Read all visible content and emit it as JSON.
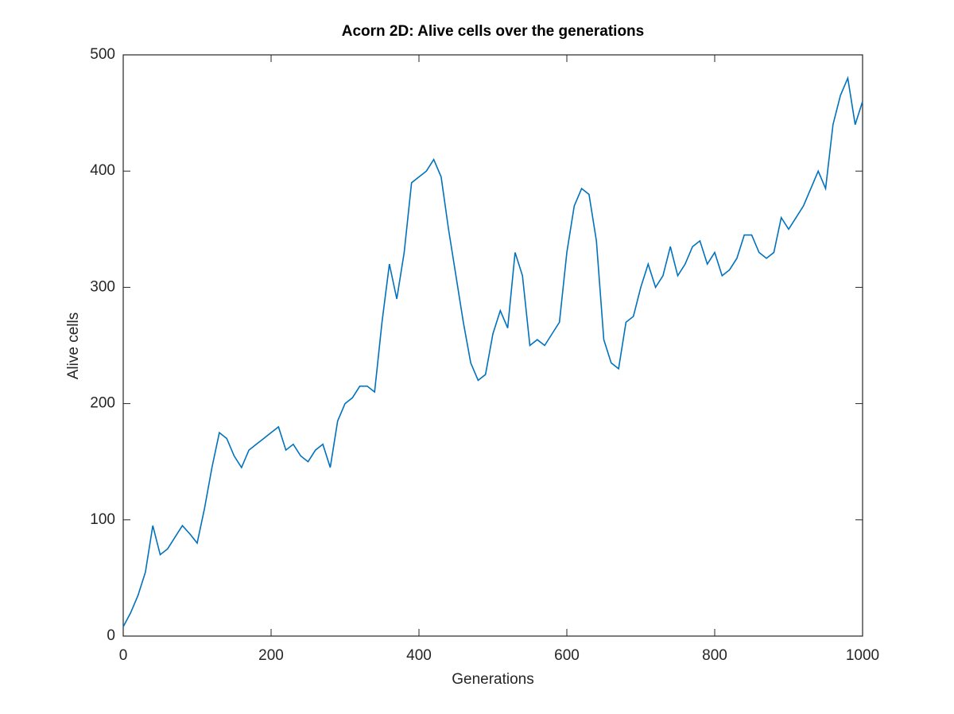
{
  "chart_data": {
    "type": "line",
    "title": "Acorn 2D: Alive cells over the generations",
    "xlabel": "Generations",
    "ylabel": "Alive cells",
    "color": "#0072bd",
    "xlim": [
      0,
      1000
    ],
    "ylim": [
      0,
      500
    ],
    "xticks": [
      0,
      200,
      400,
      600,
      800,
      1000
    ],
    "yticks": [
      0,
      100,
      200,
      300,
      400,
      500
    ],
    "x": [
      0,
      10,
      20,
      30,
      40,
      50,
      60,
      70,
      80,
      90,
      100,
      110,
      120,
      130,
      140,
      150,
      160,
      170,
      180,
      190,
      200,
      210,
      220,
      230,
      240,
      250,
      260,
      270,
      280,
      290,
      300,
      310,
      320,
      330,
      340,
      350,
      360,
      370,
      380,
      390,
      400,
      410,
      420,
      430,
      440,
      450,
      460,
      470,
      480,
      490,
      500,
      510,
      520,
      530,
      540,
      550,
      560,
      570,
      580,
      590,
      600,
      610,
      620,
      630,
      640,
      650,
      660,
      670,
      680,
      690,
      700,
      710,
      720,
      730,
      740,
      750,
      760,
      770,
      780,
      790,
      800,
      810,
      820,
      830,
      840,
      850,
      860,
      870,
      880,
      890,
      900,
      910,
      920,
      930,
      940,
      950,
      960,
      970,
      980,
      990,
      1000
    ],
    "values": [
      8,
      20,
      35,
      55,
      95,
      70,
      75,
      85,
      95,
      88,
      80,
      110,
      145,
      175,
      170,
      155,
      145,
      160,
      165,
      170,
      175,
      180,
      160,
      165,
      155,
      150,
      160,
      165,
      145,
      185,
      200,
      205,
      215,
      215,
      210,
      270,
      320,
      290,
      330,
      390,
      395,
      400,
      410,
      395,
      350,
      310,
      270,
      235,
      220,
      225,
      260,
      280,
      265,
      330,
      310,
      250,
      255,
      250,
      260,
      270,
      330,
      370,
      385,
      380,
      340,
      255,
      235,
      230,
      270,
      275,
      300,
      320,
      300,
      310,
      335,
      310,
      320,
      335,
      340,
      320,
      330,
      310,
      315,
      325,
      345,
      345,
      330,
      325,
      330,
      360,
      350,
      360,
      370,
      385,
      400,
      385,
      440,
      465,
      480,
      440,
      460
    ]
  }
}
